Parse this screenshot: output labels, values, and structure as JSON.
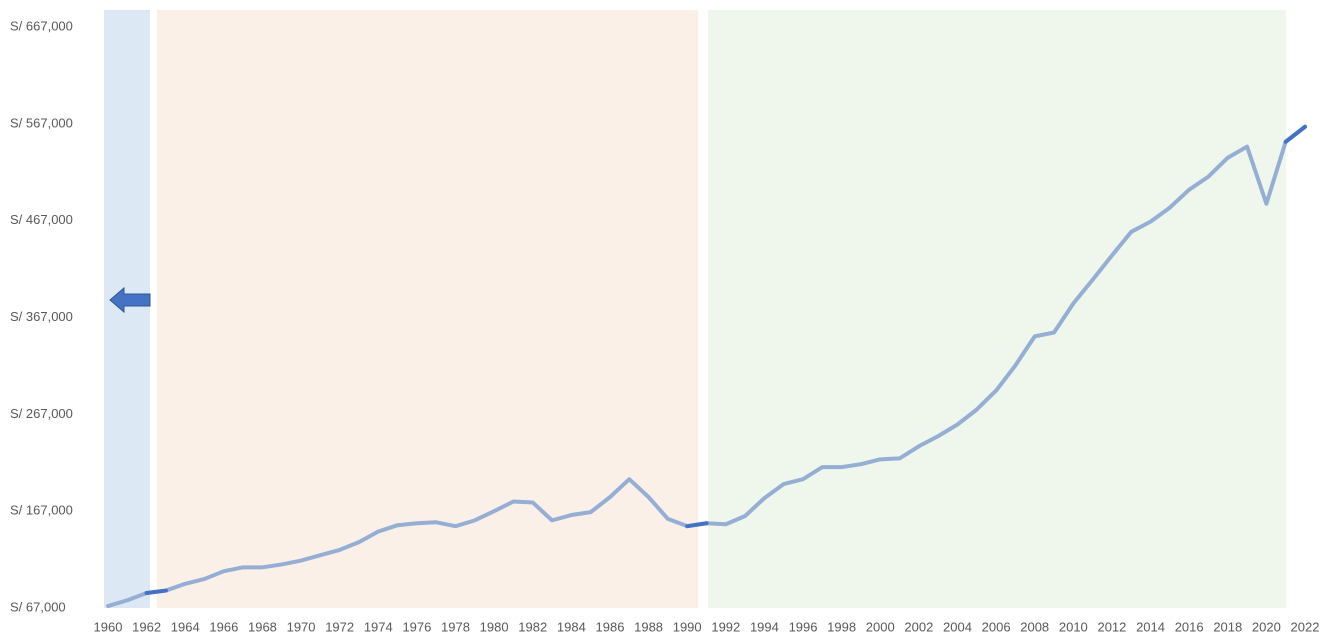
{
  "chart_data": {
    "type": "line",
    "x": [
      1960,
      1961,
      1962,
      1963,
      1964,
      1965,
      1966,
      1967,
      1968,
      1969,
      1970,
      1971,
      1972,
      1973,
      1974,
      1975,
      1976,
      1977,
      1978,
      1979,
      1980,
      1981,
      1982,
      1983,
      1984,
      1985,
      1986,
      1987,
      1988,
      1989,
      1990,
      1991,
      1992,
      1993,
      1994,
      1995,
      1996,
      1997,
      1998,
      1999,
      2000,
      2001,
      2002,
      2003,
      2004,
      2005,
      2006,
      2007,
      2008,
      2009,
      2010,
      2011,
      2012,
      2013,
      2014,
      2015,
      2016,
      2017,
      2018,
      2019,
      2020,
      2021,
      2022
    ],
    "series": [
      {
        "color": "#94aed4",
        "highlight_color": "#4472c4",
        "values": [
          69000,
          75000,
          82500,
          85000,
          92000,
          97000,
          105000,
          109000,
          109000,
          112000,
          116000,
          121500,
          127000,
          135000,
          146000,
          152500,
          154500,
          155500,
          151500,
          157500,
          167000,
          177000,
          176000,
          157500,
          163000,
          166000,
          181500,
          200000,
          181500,
          159000,
          151500,
          154500,
          153500,
          162000,
          180500,
          195000,
          200000,
          212500,
          212500,
          215500,
          220500,
          221500,
          234000,
          244500,
          256500,
          272000,
          291500,
          317500,
          347500,
          351500,
          381500,
          406000,
          431000,
          455500,
          466000,
          480500,
          499000,
          512500,
          532000,
          543500,
          484500,
          548500,
          564000
        ]
      }
    ],
    "xlim": [
      1960,
      2022
    ],
    "xticks": [
      1960,
      1962,
      1964,
      1966,
      1968,
      1970,
      1972,
      1974,
      1976,
      1978,
      1980,
      1982,
      1984,
      1986,
      1988,
      1990,
      1992,
      1994,
      1996,
      1998,
      2000,
      2002,
      2004,
      2006,
      2008,
      2010,
      2012,
      2014,
      2016,
      2018,
      2020,
      2022
    ],
    "ylim": [
      67000,
      667000
    ],
    "yticks": [
      {
        "value": 67000,
        "label": "S/ 67,000"
      },
      {
        "value": 167000,
        "label": "S/ 167,000"
      },
      {
        "value": 267000,
        "label": "S/ 267,000"
      },
      {
        "value": 367000,
        "label": "S/ 367,000"
      },
      {
        "value": 467000,
        "label": "S/ 467,000"
      },
      {
        "value": 567000,
        "label": "S/ 567,000"
      },
      {
        "value": 667000,
        "label": "S/ 667,000"
      }
    ],
    "grid": false
  }
}
